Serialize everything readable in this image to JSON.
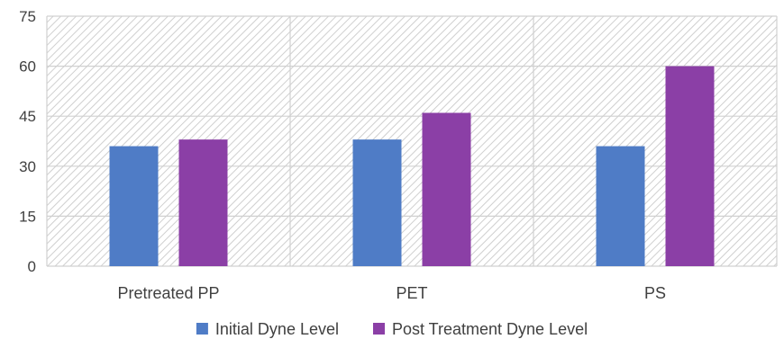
{
  "chart_data": {
    "type": "bar",
    "categories": [
      "Pretreated PP",
      "PET",
      "PS"
    ],
    "series": [
      {
        "name": "Initial Dyne Level",
        "values": [
          36,
          38,
          36
        ],
        "color": "#4F7CC6"
      },
      {
        "name": "Post Treatment Dyne Level",
        "values": [
          38,
          46,
          60
        ],
        "color": "#8B3FA6"
      }
    ],
    "ylim": [
      0,
      75
    ],
    "yticks": [
      0,
      15,
      30,
      45,
      60,
      75
    ],
    "title": "",
    "xlabel": "",
    "ylabel": "",
    "grid": true,
    "plot_background": "hatched",
    "legend_position": "bottom"
  }
}
